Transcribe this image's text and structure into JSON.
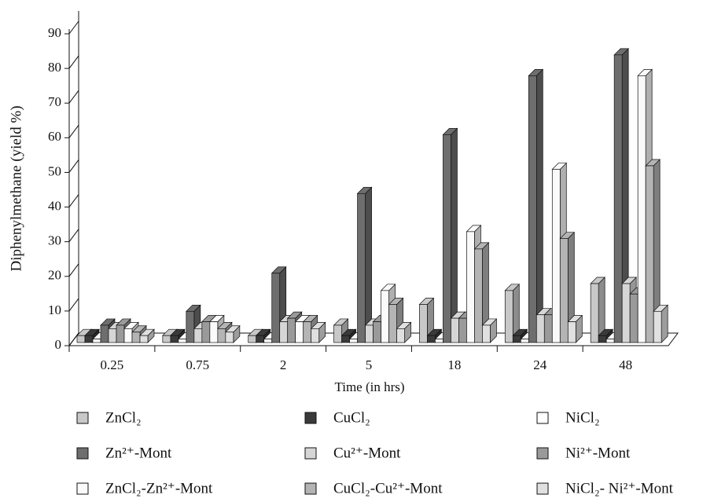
{
  "chart_data": {
    "type": "bar3d",
    "y_label": "Diphenylmethane (yield %)",
    "x_label": "Time (in hrs)",
    "categories": [
      "0.25",
      "0.75",
      "2",
      "5",
      "18",
      "24",
      "48"
    ],
    "ylim": [
      0,
      90
    ],
    "yticks": [
      0,
      10,
      20,
      30,
      40,
      50,
      60,
      70,
      80,
      90
    ],
    "series": [
      {
        "name": "ZnCl₂",
        "color": "#c8c8c8",
        "values": [
          2,
          2,
          2,
          5,
          11,
          15,
          17
        ]
      },
      {
        "name": "CuCl₂",
        "color": "#3a3a3a",
        "values": [
          2,
          2,
          2,
          2,
          2,
          2,
          2
        ]
      },
      {
        "name": "NiCl₂",
        "color": "#ffffff",
        "values": [
          1,
          1,
          1,
          1,
          1,
          1,
          1
        ]
      },
      {
        "name": "Zn²⁺-Mont",
        "color": "#6e6e6e",
        "values": [
          5,
          9,
          20,
          43,
          60,
          77,
          83
        ]
      },
      {
        "name": "Cu²⁺-Mont",
        "color": "#d6d6d6",
        "values": [
          4,
          4,
          6,
          5,
          7,
          8,
          17
        ]
      },
      {
        "name": "Ni²⁺-Mont",
        "color": "#9a9a9a",
        "values": [
          5,
          6,
          7,
          6,
          7,
          8,
          14
        ]
      },
      {
        "name": "ZnCl₂-Zn²⁺-Mont",
        "color": "#fafafa",
        "values": [
          4,
          6,
          6,
          15,
          32,
          50,
          77
        ]
      },
      {
        "name": "CuCl₂-Cu²⁺-Mont",
        "color": "#b4b4b4",
        "values": [
          3,
          4,
          6,
          11,
          27,
          30,
          51
        ]
      },
      {
        "name": "NiCl₂- Ni²⁺-Mont",
        "color": "#e0e0e0",
        "values": [
          2,
          3,
          4,
          4,
          5,
          6,
          9
        ]
      }
    ]
  }
}
